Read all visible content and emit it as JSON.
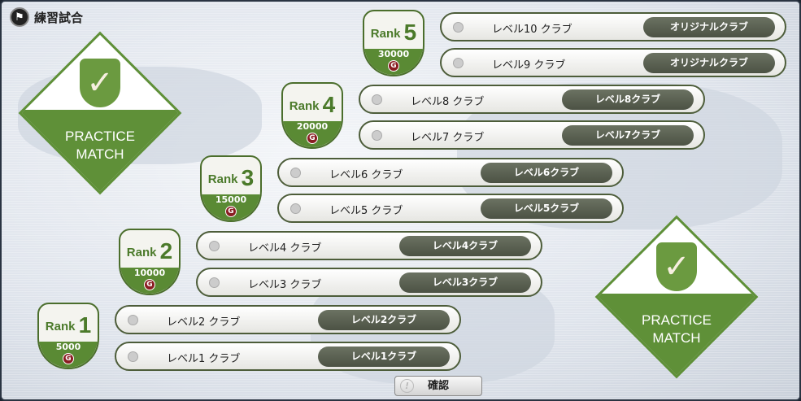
{
  "window": {
    "title": "練習試合",
    "title_icon": "flag-icon"
  },
  "emblem": {
    "line1": "PRACTICE",
    "line2": "MATCH",
    "color": "#5f9038"
  },
  "ranks": [
    {
      "rank_label": "Rank",
      "rank": "5",
      "cost": "30000",
      "currency": "G",
      "clubs": [
        {
          "name": "レベル10 クラブ",
          "button": "オリジナルクラブ"
        },
        {
          "name": "レベル9 クラブ",
          "button": "オリジナルクラブ"
        }
      ]
    },
    {
      "rank_label": "Rank",
      "rank": "4",
      "cost": "20000",
      "currency": "G",
      "clubs": [
        {
          "name": "レベル8 クラブ",
          "button": "レベル8クラブ"
        },
        {
          "name": "レベル7 クラブ",
          "button": "レベル7クラブ"
        }
      ]
    },
    {
      "rank_label": "Rank",
      "rank": "3",
      "cost": "15000",
      "currency": "G",
      "clubs": [
        {
          "name": "レベル6 クラブ",
          "button": "レベル6クラブ"
        },
        {
          "name": "レベル5 クラブ",
          "button": "レベル5クラブ"
        }
      ]
    },
    {
      "rank_label": "Rank",
      "rank": "2",
      "cost": "10000",
      "currency": "G",
      "clubs": [
        {
          "name": "レベル4 クラブ",
          "button": "レベル4クラブ"
        },
        {
          "name": "レベル3 クラブ",
          "button": "レベル3クラブ"
        }
      ]
    },
    {
      "rank_label": "Rank",
      "rank": "1",
      "cost": "5000",
      "currency": "G",
      "clubs": [
        {
          "name": "レベル2 クラブ",
          "button": "レベル2クラブ"
        },
        {
          "name": "レベル1 クラブ",
          "button": "レベル1クラブ"
        }
      ]
    }
  ],
  "confirm": {
    "label": "確認",
    "icon": "info-icon"
  }
}
